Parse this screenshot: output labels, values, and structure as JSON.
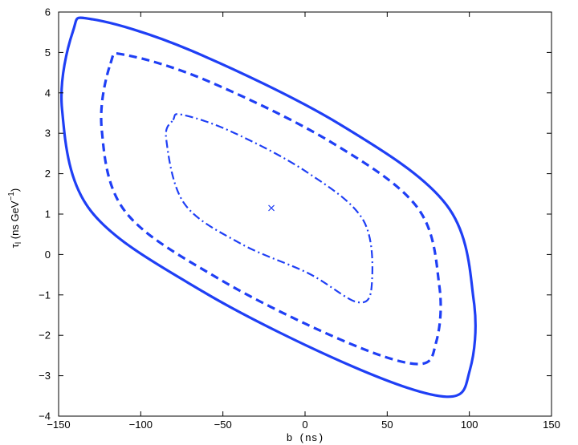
{
  "chart_data": {
    "type": "line",
    "title": "",
    "xlabel": "b (ns)",
    "ylabel": {
      "symbol": "τ",
      "subscript": "l",
      "text": " (ns GeV",
      "superscript": "−1",
      "suffix": ")"
    },
    "xlim": [
      -150,
      150
    ],
    "ylim": [
      -4,
      6
    ],
    "xticks": [
      -150,
      -100,
      -50,
      0,
      50,
      100,
      150
    ],
    "yticks": [
      -4,
      -3,
      -2,
      -1,
      0,
      1,
      2,
      3,
      4,
      5,
      6
    ],
    "xtick_labels": [
      "−150",
      "−100",
      "−50",
      "0",
      "50",
      "100",
      "150"
    ],
    "ytick_labels": [
      "−4",
      "−3",
      "−2",
      "−1",
      "0",
      "1",
      "2",
      "3",
      "4",
      "5",
      "6"
    ],
    "grid": false,
    "center": {
      "x": -20.5,
      "y": 1.15,
      "marker": "x"
    },
    "series": [
      {
        "style": "solid",
        "color": "#1f3ff5",
        "x": [
          -141.3,
          -129.3,
          -69.6,
          20.8,
          86.2,
          102.7,
          100.3,
          86.2,
          28.9,
          -61.6,
          -130.4,
          -147.9,
          -141.3
        ],
        "y": [
          5.52,
          5.82,
          5.05,
          3.23,
          1.22,
          -1.15,
          -2.86,
          -3.52,
          -2.77,
          -0.93,
          1.08,
          3.59,
          5.52
        ]
      },
      {
        "style": "dashed",
        "color": "#1f3ff5",
        "x": [
          -118.4,
          -108.5,
          -59.6,
          14.6,
          68.2,
          81.7,
          79.8,
          68.2,
          21.2,
          -53.0,
          -109.4,
          -123.8,
          -118.4
        ],
        "y": [
          4.73,
          4.93,
          4.3,
          2.81,
          1.17,
          -0.77,
          -2.17,
          -2.71,
          -2.1,
          -0.59,
          1.06,
          3.12,
          4.73
        ]
      },
      {
        "style": "dashdot",
        "color": "#1f3ff5",
        "x": [
          -80.3,
          -74.9,
          -44.8,
          0.7,
          35.4,
          40.6,
          31.9,
          2.3,
          -39.2,
          -73.5,
          -84.5,
          -80.3
        ],
        "y": [
          3.33,
          3.46,
          3.04,
          2.05,
          0.85,
          -0.75,
          -1.18,
          -0.47,
          0.27,
          1.26,
          2.85,
          3.33
        ]
      }
    ]
  }
}
